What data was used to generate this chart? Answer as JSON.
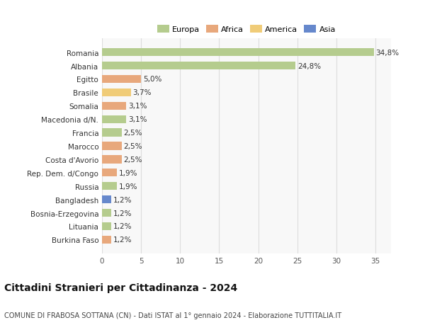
{
  "title": "Cittadini Stranieri per Cittadinanza - 2024",
  "subtitle": "COMUNE DI FRABOSA SOTTANA (CN) - Dati ISTAT al 1° gennaio 2024 - Elaborazione TUTTITALIA.IT",
  "categories": [
    "Romania",
    "Albania",
    "Egitto",
    "Brasile",
    "Somalia",
    "Macedonia d/N.",
    "Francia",
    "Marocco",
    "Costa d'Avorio",
    "Rep. Dem. d/Congo",
    "Russia",
    "Bangladesh",
    "Bosnia-Erzegovina",
    "Lituania",
    "Burkina Faso"
  ],
  "values": [
    34.8,
    24.8,
    5.0,
    3.7,
    3.1,
    3.1,
    2.5,
    2.5,
    2.5,
    1.9,
    1.9,
    1.2,
    1.2,
    1.2,
    1.2
  ],
  "labels": [
    "34,8%",
    "24,8%",
    "5,0%",
    "3,7%",
    "3,1%",
    "3,1%",
    "2,5%",
    "2,5%",
    "2,5%",
    "1,9%",
    "1,9%",
    "1,2%",
    "1,2%",
    "1,2%",
    "1,2%"
  ],
  "colors": [
    "#b5cc8e",
    "#b5cc8e",
    "#e8a87c",
    "#f0cc78",
    "#e8a87c",
    "#b5cc8e",
    "#b5cc8e",
    "#e8a87c",
    "#e8a87c",
    "#e8a87c",
    "#b5cc8e",
    "#6688cc",
    "#b5cc8e",
    "#b5cc8e",
    "#e8a87c"
  ],
  "legend": [
    {
      "label": "Europa",
      "color": "#b5cc8e"
    },
    {
      "label": "Africa",
      "color": "#e8a87c"
    },
    {
      "label": "America",
      "color": "#f0cc78"
    },
    {
      "label": "Asia",
      "color": "#6688cc"
    }
  ],
  "xlim": [
    0,
    37
  ],
  "xticks": [
    0,
    5,
    10,
    15,
    20,
    25,
    30,
    35
  ],
  "background_color": "#ffffff",
  "grid_color": "#dddddd",
  "bar_height": 0.6,
  "label_fontsize": 7.5,
  "tick_fontsize": 7.5,
  "title_fontsize": 10,
  "subtitle_fontsize": 7,
  "legend_fontsize": 8
}
